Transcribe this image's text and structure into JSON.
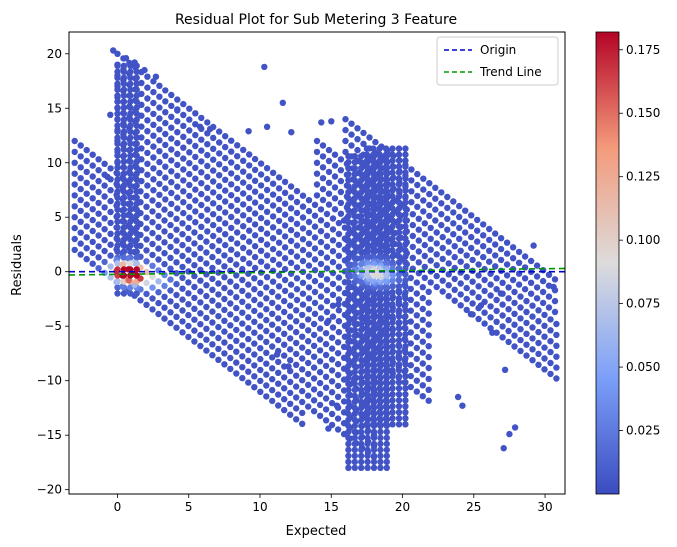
{
  "chart_data": {
    "type": "scatter",
    "title": "Residual Plot for Sub Metering 3 Feature",
    "xlabel": "Expected",
    "ylabel": "Residuals",
    "xlim": [
      -3.4,
      31.4
    ],
    "ylim": [
      -20.4,
      22.0
    ],
    "x_ticks": [
      0,
      5,
      10,
      15,
      20,
      25,
      30
    ],
    "y_ticks": [
      -20,
      -15,
      -10,
      -5,
      0,
      5,
      10,
      15,
      20
    ],
    "grid": false,
    "legend": {
      "position": "top-right",
      "entries": [
        {
          "label": "Origin",
          "color": "#0000cc",
          "style": "dashed"
        },
        {
          "label": "Trend Line",
          "color": "#009900",
          "style": "dashed"
        }
      ]
    },
    "lines": {
      "origin": {
        "y": 0
      },
      "trend": {
        "start": [
          -3.4,
          -0.3
        ],
        "end": [
          31.4,
          0.3
        ]
      }
    },
    "colorbar": {
      "cmap": "coolwarm",
      "min": 0.0,
      "max": 0.182,
      "ticks": [
        0.025,
        0.05,
        0.075,
        0.1,
        0.125,
        0.15,
        0.175
      ],
      "tick_labels": [
        "0.025",
        "0.050",
        "0.075",
        "0.100",
        "0.125",
        "0.150",
        "0.175"
      ]
    },
    "density_bands": {
      "residual_definition": "residual = k - expected",
      "bands": [
        {
          "k_range": [
            -1,
            0
          ],
          "x_range": [
            -3,
            13
          ]
        },
        {
          "k_range": [
            1,
            9
          ],
          "x_range": [
            -3,
            18
          ]
        },
        {
          "k_range": [
            10,
            20
          ],
          "x_range": [
            0,
            22
          ]
        },
        {
          "k_range": [
            21,
            26
          ],
          "x_range": [
            14,
            31
          ]
        },
        {
          "k_range": [
            27,
            30
          ],
          "x_range": [
            16,
            31
          ]
        }
      ]
    },
    "vertical_strips": [
      {
        "x_range": [
          0,
          1.6
        ],
        "y_range": [
          -2,
          19
        ]
      },
      {
        "x_range": [
          16.2,
          19
        ],
        "y_range": [
          -18,
          11
        ]
      },
      {
        "x_range": [
          17.5,
          20.5
        ],
        "y_range": [
          -14,
          11.5
        ]
      }
    ],
    "hotspots": [
      {
        "x": 0.5,
        "y": 0,
        "density": 0.18
      },
      {
        "x": 1.2,
        "y": -0.3,
        "density": 0.13
      },
      {
        "x": 17.8,
        "y": 0.1,
        "density": 0.06
      },
      {
        "x": 18.5,
        "y": -0.4,
        "density": 0.05
      },
      {
        "x": 2.5,
        "y": -0.8,
        "density": 0.06
      }
    ],
    "sparse_points": [
      [
        -0.3,
        20.3
      ],
      [
        0.6,
        19.6
      ],
      [
        1.2,
        19.2
      ],
      [
        1.9,
        18.5
      ],
      [
        2.7,
        17.9
      ],
      [
        10.3,
        18.8
      ],
      [
        11.6,
        15.5
      ],
      [
        12.2,
        12.8
      ],
      [
        9.2,
        12.9
      ],
      [
        6.5,
        13.1
      ],
      [
        4.2,
        14.9
      ],
      [
        14.3,
        13.7
      ],
      [
        15.0,
        13.8
      ],
      [
        -0.5,
        14.4
      ],
      [
        -0.7,
        8.7
      ],
      [
        5.8,
        13.3
      ],
      [
        10.5,
        13.3
      ],
      [
        16.1,
        2.9
      ],
      [
        15.9,
        4.7
      ],
      [
        14.8,
        -4.5
      ],
      [
        17.2,
        -4.3
      ],
      [
        15.5,
        -3.0
      ],
      [
        11.2,
        -7.6
      ],
      [
        12.0,
        -8.7
      ],
      [
        14.8,
        -14.4
      ],
      [
        15.4,
        -12.3
      ],
      [
        16.6,
        -10.0
      ],
      [
        23.9,
        -11.5
      ],
      [
        24.2,
        -12.3
      ],
      [
        24.8,
        -3.9
      ],
      [
        25.5,
        -3.1
      ],
      [
        26.3,
        -5.6
      ],
      [
        27.2,
        -9.0
      ],
      [
        27.9,
        -14.3
      ],
      [
        27.5,
        -14.9
      ],
      [
        27.1,
        -16.2
      ],
      [
        26.9,
        -2.0
      ],
      [
        29.2,
        2.4
      ],
      [
        30.6,
        -1.4
      ]
    ]
  }
}
